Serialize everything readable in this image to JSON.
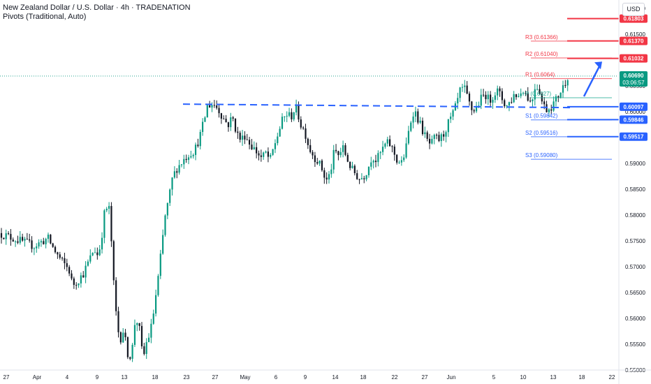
{
  "header": {
    "title": "New Zealand Dollar / U.S. Dollar · 4h · TRADENATION",
    "indicator": "Pivots (Traditional, Auto)"
  },
  "currency_button": "USD",
  "colors": {
    "up": "#089981",
    "down": "#131722",
    "resistance": "#f23645",
    "support": "#2962ff",
    "pivot": "#22ab94",
    "dashed": "#2962ff",
    "current_price": "#089981",
    "grid_text": "#131722"
  },
  "chart_data": {
    "type": "candlestick",
    "title": "New Zealand Dollar / U.S. Dollar · 4h · TRADENATION",
    "xlabel": "",
    "ylabel": "",
    "ylim": [
      0.55,
      0.62
    ],
    "grid": false,
    "y_ticks": [
      "0.62000",
      "0.61500",
      "0.61000",
      "0.60500",
      "0.60000",
      "0.59500",
      "0.59000",
      "0.58500",
      "0.58000",
      "0.57500",
      "0.57000",
      "0.56500",
      "0.56000",
      "0.55500",
      "0.55000"
    ],
    "x_ticks": [
      "27",
      "Apr",
      "4",
      "9",
      "13",
      "18",
      "23",
      "27",
      "May",
      "6",
      "9",
      "14",
      "18",
      "22",
      "27",
      "Jun",
      "5",
      "10",
      "13",
      "18",
      "22"
    ],
    "price_path": [
      [
        0,
        0.5765
      ],
      [
        3,
        0.575
      ],
      [
        5,
        0.574
      ],
      [
        7,
        0.5755
      ],
      [
        8,
        0.573
      ],
      [
        9,
        0.571
      ],
      [
        10,
        0.5695
      ],
      [
        10.5,
        0.5665
      ],
      [
        11,
        0.567
      ],
      [
        12,
        0.5685
      ],
      [
        13,
        0.5715
      ],
      [
        13.6,
        0.5735
      ],
      [
        14.2,
        0.572
      ],
      [
        14.7,
        0.576
      ],
      [
        15.1,
        0.5805
      ],
      [
        15.7,
        0.582
      ],
      [
        16.1,
        0.5745
      ],
      [
        16.5,
        0.5645
      ],
      [
        16.9,
        0.559
      ],
      [
        17.3,
        0.5555
      ],
      [
        17.7,
        0.558
      ],
      [
        18.1,
        0.5555
      ],
      [
        18.6,
        0.552
      ],
      [
        19.1,
        0.5545
      ],
      [
        19.5,
        0.56
      ],
      [
        20,
        0.559
      ],
      [
        20.4,
        0.554
      ],
      [
        20.8,
        0.553
      ],
      [
        21.2,
        0.556
      ],
      [
        21.6,
        0.557
      ],
      [
        22,
        0.56
      ],
      [
        22.8,
        0.568
      ],
      [
        23.3,
        0.574
      ],
      [
        23.8,
        0.58
      ],
      [
        24.3,
        0.583
      ],
      [
        24.8,
        0.587
      ],
      [
        25.4,
        0.589
      ],
      [
        26,
        0.59
      ],
      [
        26.6,
        0.591
      ],
      [
        27.3,
        0.592
      ],
      [
        28,
        0.5925
      ],
      [
        28.7,
        0.595
      ],
      [
        29.3,
        0.598
      ],
      [
        29.8,
        0.601
      ],
      [
        30.4,
        0.6015
      ],
      [
        31,
        0.6012
      ],
      [
        31.6,
        0.6
      ],
      [
        32.2,
        0.5985
      ],
      [
        32.8,
        0.5975
      ],
      [
        33.4,
        0.599
      ],
      [
        34,
        0.596
      ],
      [
        34.6,
        0.5945
      ],
      [
        35.2,
        0.5955
      ],
      [
        35.8,
        0.594
      ],
      [
        36.4,
        0.593
      ],
      [
        37,
        0.592
      ],
      [
        37.6,
        0.591
      ],
      [
        38.2,
        0.592
      ],
      [
        38.8,
        0.5905
      ],
      [
        39.4,
        0.5935
      ],
      [
        40,
        0.596
      ],
      [
        40.6,
        0.5985
      ],
      [
        41.2,
        0.5995
      ],
      [
        41.8,
        0.599
      ],
      [
        42.4,
        0.6008
      ],
      [
        42.7,
        0.6
      ],
      [
        43.2,
        0.5975
      ],
      [
        43.8,
        0.596
      ],
      [
        44.4,
        0.593
      ],
      [
        45,
        0.5915
      ],
      [
        45.6,
        0.5905
      ],
      [
        46.2,
        0.589
      ],
      [
        46.8,
        0.5865
      ],
      [
        47.4,
        0.588
      ],
      [
        48,
        0.5925
      ],
      [
        48.6,
        0.5915
      ],
      [
        49.2,
        0.593
      ],
      [
        49.8,
        0.591
      ],
      [
        50.4,
        0.589
      ],
      [
        51,
        0.588
      ],
      [
        51.6,
        0.587
      ],
      [
        52.2,
        0.5875
      ],
      [
        52.8,
        0.589
      ],
      [
        53.4,
        0.5915
      ],
      [
        54,
        0.5905
      ],
      [
        54.6,
        0.592
      ],
      [
        55.2,
        0.5935
      ],
      [
        55.8,
        0.594
      ],
      [
        56.4,
        0.5925
      ],
      [
        57,
        0.5905
      ],
      [
        57.6,
        0.59
      ],
      [
        58.2,
        0.5925
      ],
      [
        58.8,
        0.5975
      ],
      [
        59.4,
        0.6005
      ],
      [
        60,
        0.5985
      ],
      [
        60.6,
        0.5965
      ],
      [
        61.2,
        0.5945
      ],
      [
        61.8,
        0.5935
      ],
      [
        62.4,
        0.595
      ],
      [
        63,
        0.5945
      ],
      [
        63.6,
        0.5955
      ],
      [
        64.2,
        0.5975
      ],
      [
        64.8,
        0.599
      ],
      [
        65.4,
        0.601
      ],
      [
        66,
        0.604
      ],
      [
        66.6,
        0.6045
      ],
      [
        67.2,
        0.602
      ],
      [
        67.8,
        0.6
      ],
      [
        68.4,
        0.601
      ],
      [
        69,
        0.6025
      ],
      [
        69.6,
        0.6035
      ],
      [
        70.2,
        0.602
      ],
      [
        70.8,
        0.6035
      ],
      [
        71.4,
        0.604
      ],
      [
        72,
        0.6025
      ],
      [
        72.6,
        0.601
      ],
      [
        73.2,
        0.602
      ],
      [
        73.8,
        0.6035
      ],
      [
        74.4,
        0.603
      ],
      [
        75,
        0.6045
      ],
      [
        75.6,
        0.603
      ],
      [
        76.2,
        0.6015
      ],
      [
        76.8,
        0.6055
      ],
      [
        77.4,
        0.604
      ],
      [
        77.8,
        0.6015
      ],
      [
        78.4,
        0.6005
      ],
      [
        79,
        0.601
      ],
      [
        79.6,
        0.602
      ],
      [
        80.2,
        0.6035
      ],
      [
        80.8,
        0.605
      ],
      [
        81.4,
        0.6069
      ]
    ],
    "pivots": [
      {
        "label": "R3",
        "value": "0.61366",
        "level": 0.61366,
        "kind": "resistance"
      },
      {
        "label": "R2",
        "value": "0.61040",
        "level": 0.6104,
        "kind": "resistance"
      },
      {
        "label": "R1",
        "value": "0.6064",
        "level": 0.6064,
        "kind": "resistance"
      },
      {
        "label": "P",
        "value": "0.6027",
        "level": 0.6027,
        "kind": "pivot"
      },
      {
        "label": "S1",
        "value": "0.59842",
        "level": 0.59842,
        "kind": "support"
      },
      {
        "label": "S2",
        "value": "0.59516",
        "level": 0.59516,
        "kind": "support"
      },
      {
        "label": "S3",
        "value": "0.59080",
        "level": 0.5908,
        "kind": "support"
      }
    ],
    "price_badges": [
      {
        "value": "0.61803",
        "level": 0.61803,
        "kind": "resistance"
      },
      {
        "value": "0.61370",
        "level": 0.6137,
        "kind": "resistance"
      },
      {
        "value": "0.61032",
        "level": 0.61032,
        "kind": "resistance"
      },
      {
        "value": "0.60097",
        "level": 0.60097,
        "kind": "support"
      },
      {
        "value": "0.59846",
        "level": 0.59846,
        "kind": "support"
      },
      {
        "value": "0.59517",
        "level": 0.59517,
        "kind": "support"
      }
    ],
    "current_price": {
      "value": "0.60690",
      "countdown": "03:06:57",
      "level": 0.6069
    },
    "neckline_level": 0.6012,
    "arrow": {
      "from_price": 0.6027,
      "to_price": 0.6097
    }
  }
}
